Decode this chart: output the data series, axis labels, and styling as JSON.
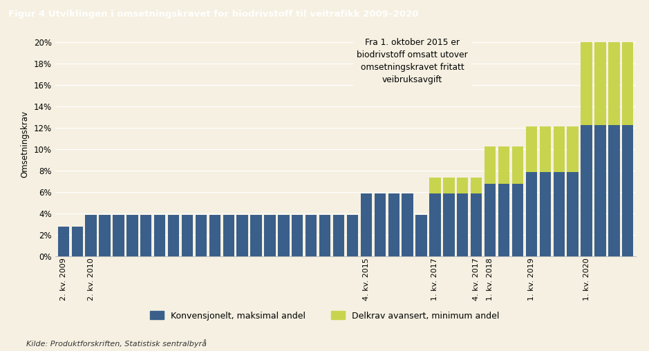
{
  "title": "Figur 4 Utviklingen i omsetningskravet for biodrivstoff til veitrafikk 2009–2020",
  "ylabel": "Omsetningskrav",
  "background_color": "#f5f0e1",
  "title_bg_color": "#922b2b",
  "title_text_color": "#ffffff",
  "bar_color_blue": "#3a5f8a",
  "bar_color_yellow": "#c8d44e",
  "annotation_text": "Fra 1. oktober 2015 er\nbiodrivstoff omsatt utover\nomsetningskravet fritatt\nveibruksavgift",
  "source_text": "Kilde: Produktforskriften, Statistisk sentralbyrå",
  "legend_blue": "Konvensjonelt, maksimal andel",
  "legend_yellow": "Delkrav avansert, minimum andel",
  "blue_values": [
    2.75,
    2.75,
    3.88,
    3.88,
    3.88,
    3.88,
    3.88,
    3.88,
    3.88,
    3.88,
    3.88,
    3.88,
    3.88,
    3.88,
    3.88,
    3.88,
    3.88,
    3.88,
    3.88,
    3.88,
    3.88,
    3.88,
    5.88,
    5.88,
    5.88,
    5.88,
    3.88,
    5.88,
    5.88,
    5.88,
    5.88,
    6.75,
    6.75,
    6.75,
    7.88,
    7.88,
    7.88,
    7.88,
    12.25,
    12.25,
    12.25,
    12.25
  ],
  "yellow_values": [
    0,
    0,
    0,
    0,
    0,
    0,
    0,
    0,
    0,
    0,
    0,
    0,
    0,
    0,
    0,
    0,
    0,
    0,
    0,
    0,
    0,
    0,
    0,
    0,
    0,
    0,
    0,
    1.5,
    1.5,
    1.5,
    1.5,
    3.5,
    3.5,
    3.5,
    4.25,
    4.25,
    4.25,
    4.25,
    7.75,
    7.75,
    7.75,
    7.75
  ],
  "label_map_indices": [
    0,
    2,
    22,
    27,
    30,
    31,
    34,
    38
  ],
  "label_map_values": [
    "2. kv. 2009",
    "2. kv. 2010",
    "4. kv. 2015",
    "1. kv. 2017",
    "4. kv. 2017",
    "1. kv. 2018",
    "1. kv. 2019",
    "1. kv. 2020"
  ],
  "ytick_labels": [
    "0%",
    "2%",
    "4%",
    "6%",
    "8%",
    "10%",
    "12%",
    "14%",
    "16%",
    "18%",
    "20%"
  ],
  "ytick_vals": [
    0,
    0.02,
    0.04,
    0.06,
    0.08,
    0.1,
    0.12,
    0.14,
    0.16,
    0.18,
    0.2
  ]
}
